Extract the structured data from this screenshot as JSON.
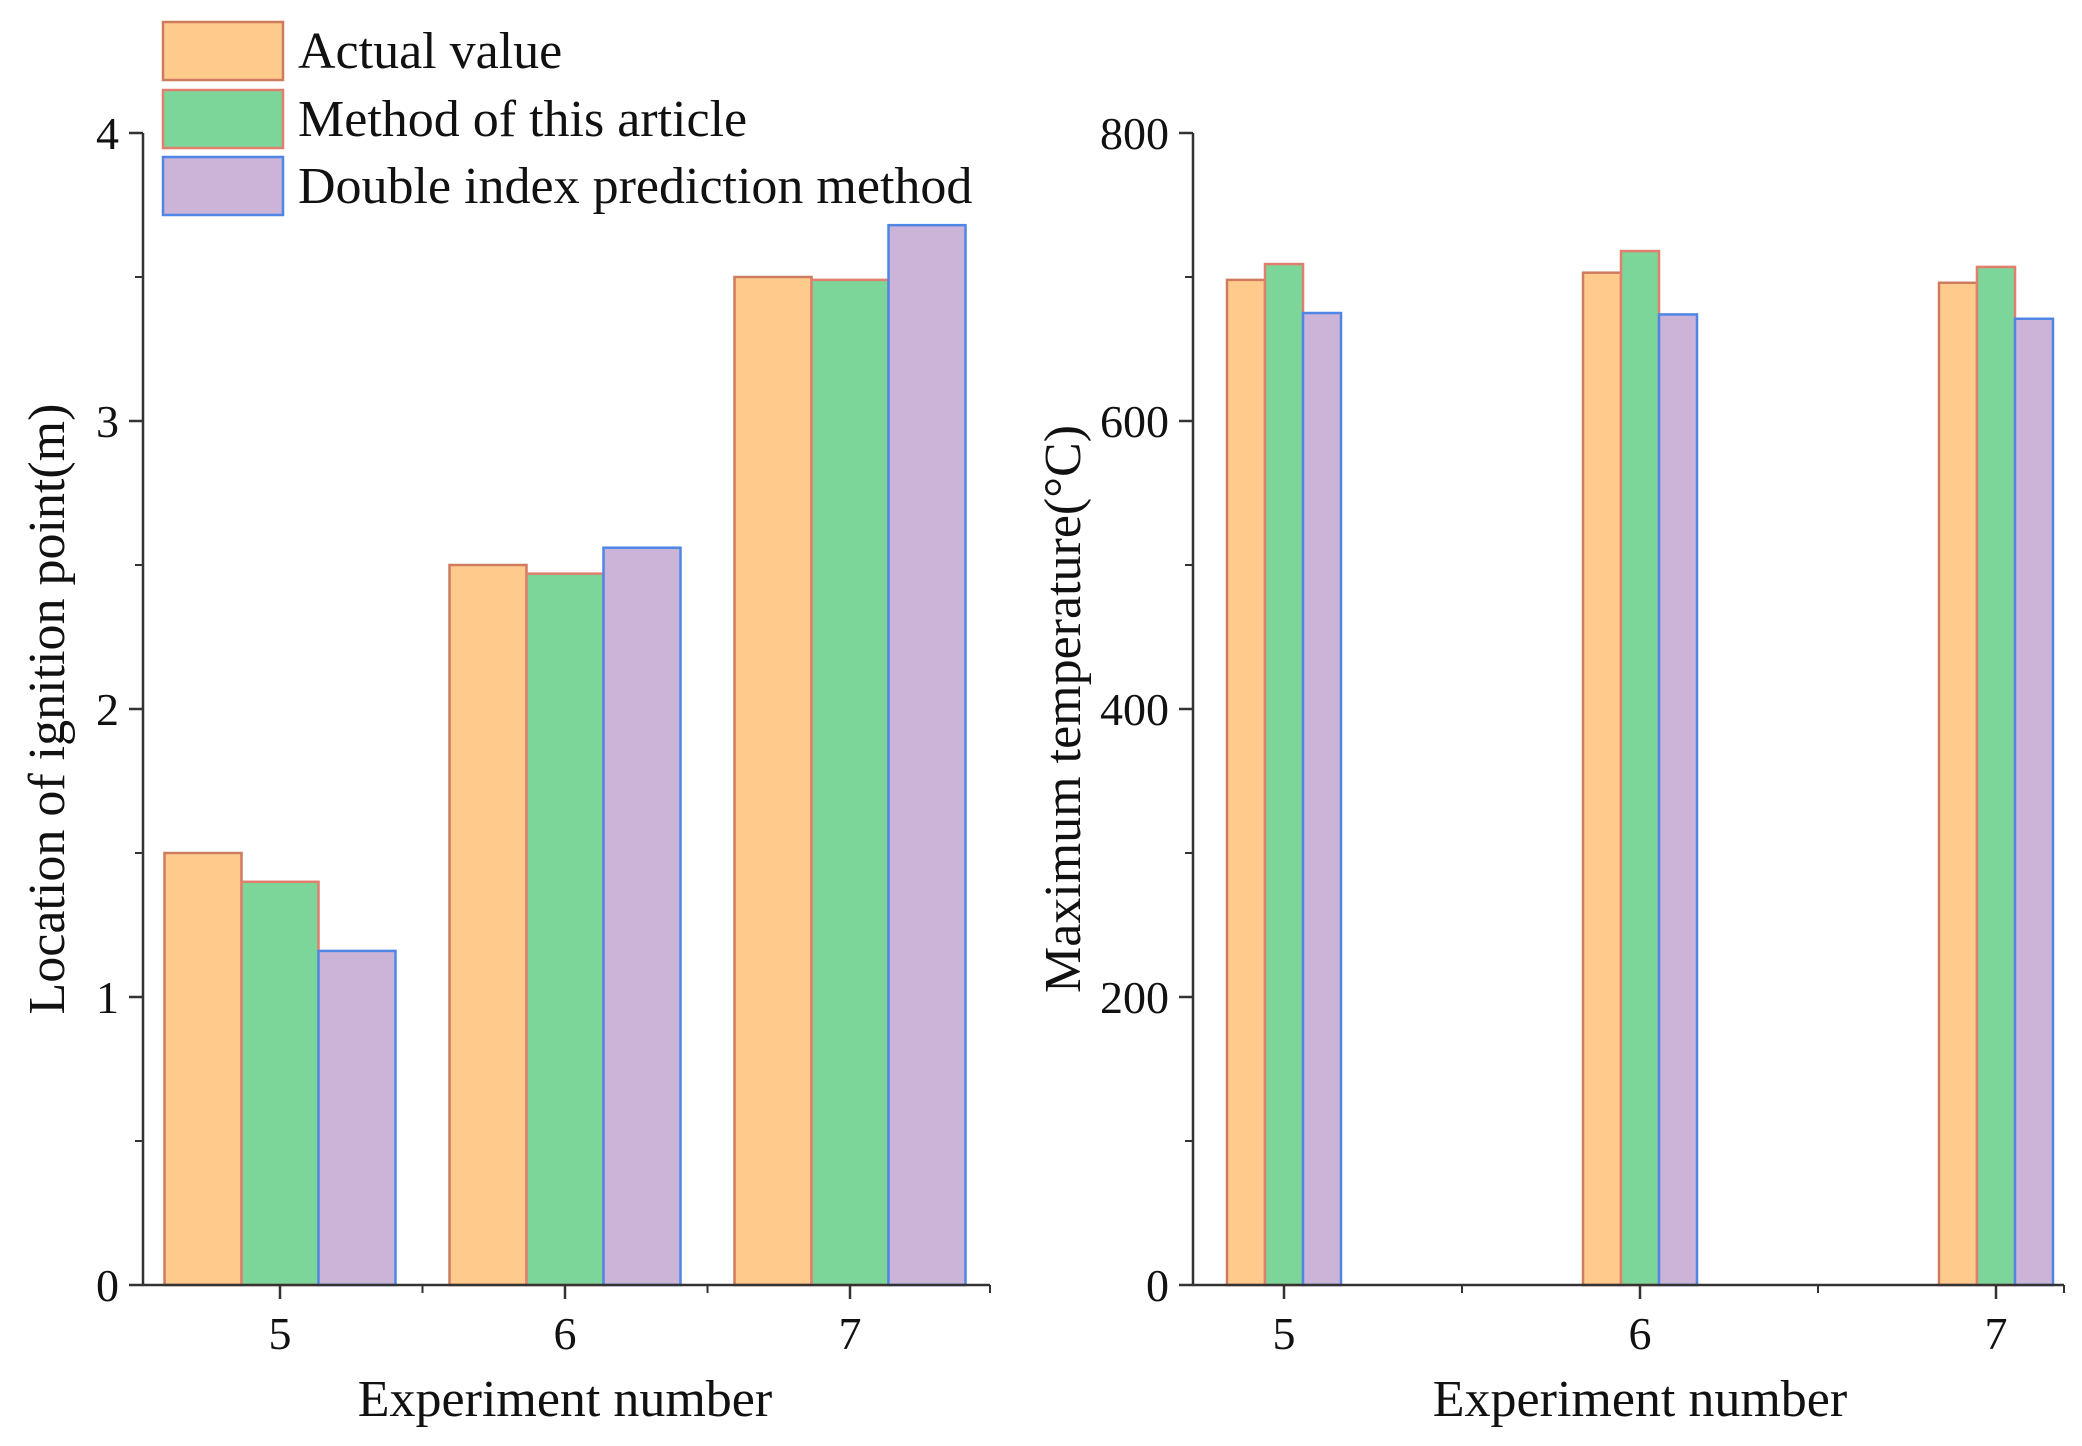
{
  "colors": {
    "actual_fill": "#FECB8D",
    "actual_edge": "#CF7B5E",
    "method_fill": "#7DD699",
    "method_edge": "#E07F6E",
    "double_fill": "#CBB4D8",
    "double_edge": "#4F86E6",
    "axis": "#333333"
  },
  "legend": [
    {
      "name": "Actual value",
      "series": "actual"
    },
    {
      "name": "Method of this article",
      "series": "method"
    },
    {
      "name": "Double index prediction method",
      "series": "double"
    }
  ],
  "chart_data": [
    {
      "type": "bar",
      "title": "",
      "categories": [
        "5",
        "6",
        "7"
      ],
      "xlabel": "Experiment number",
      "ylabel": "Location of ignition point(m)",
      "ylim": [
        0,
        4
      ],
      "yticks": [
        "0",
        "1",
        "2",
        "3",
        "4"
      ],
      "series": [
        {
          "name": "Actual value",
          "key": "actual",
          "values": [
            1.5,
            2.5,
            3.5
          ]
        },
        {
          "name": "Method of this article",
          "key": "method",
          "values": [
            1.4,
            2.47,
            3.49
          ]
        },
        {
          "name": "Double index prediction method",
          "key": "double",
          "values": [
            1.16,
            2.56,
            3.68
          ]
        }
      ]
    },
    {
      "type": "bar",
      "title": "",
      "categories": [
        "5",
        "6",
        "7"
      ],
      "xlabel": "Experiment number",
      "ylabel": "Maximum temperature(°C)",
      "ylim": [
        0,
        800
      ],
      "yticks": [
        "0",
        "200",
        "400",
        "600",
        "800"
      ],
      "series": [
        {
          "name": "Actual value",
          "key": "actual",
          "values": [
            698,
            703,
            696
          ]
        },
        {
          "name": "Method of this article",
          "key": "method",
          "values": [
            709,
            718,
            707
          ]
        },
        {
          "name": "Double index prediction method",
          "key": "double",
          "values": [
            675,
            674,
            671
          ]
        }
      ]
    }
  ]
}
